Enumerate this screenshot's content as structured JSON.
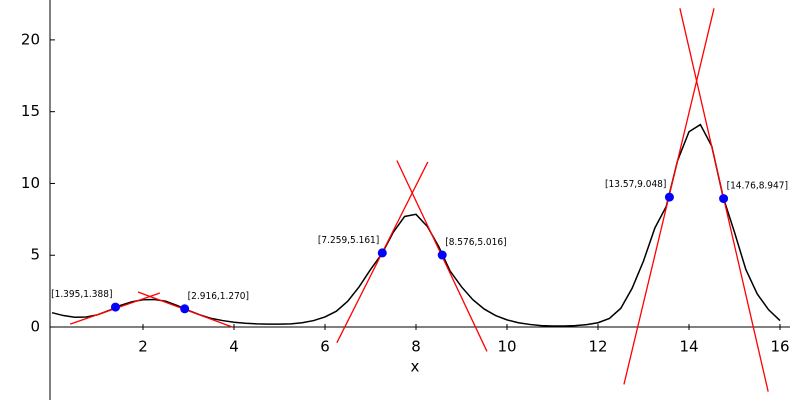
{
  "chart_data": {
    "type": "line",
    "x_label": "x",
    "xlim": [
      0,
      16
    ],
    "ylim": [
      -4.7,
      22.5
    ],
    "xticks": [
      2,
      4,
      6,
      8,
      10,
      12,
      14,
      16
    ],
    "yticks": [
      0,
      5,
      10,
      15,
      20
    ],
    "curve": {
      "color": "#000000",
      "x": [
        0,
        0.25,
        0.5,
        0.75,
        1,
        1.25,
        1.5,
        1.75,
        2,
        2.25,
        2.5,
        2.75,
        3,
        3.25,
        3.5,
        3.75,
        4,
        4.25,
        4.5,
        4.75,
        5,
        5.25,
        5.5,
        5.75,
        6,
        6.25,
        6.5,
        6.75,
        7,
        7.25,
        7.5,
        7.75,
        8,
        8.25,
        8.5,
        8.75,
        9,
        9.25,
        9.5,
        9.75,
        10,
        10.25,
        10.5,
        10.75,
        11,
        11.25,
        11.5,
        11.75,
        12,
        12.25,
        12.5,
        12.75,
        13,
        13.25,
        13.5,
        13.75,
        14,
        14.25,
        14.5,
        14.75,
        15,
        15.25,
        15.5,
        15.75,
        16
      ],
      "values": [
        1.0,
        0.8,
        0.68,
        0.7,
        0.85,
        1.15,
        1.5,
        1.75,
        1.9,
        1.92,
        1.8,
        1.5,
        1.15,
        0.85,
        0.6,
        0.45,
        0.33,
        0.26,
        0.22,
        0.2,
        0.2,
        0.22,
        0.3,
        0.45,
        0.7,
        1.1,
        1.8,
        2.8,
        4.0,
        5.1,
        6.6,
        7.7,
        7.85,
        7.0,
        5.6,
        3.9,
        2.8,
        1.9,
        1.25,
        0.8,
        0.5,
        0.3,
        0.18,
        0.1,
        0.07,
        0.07,
        0.1,
        0.17,
        0.3,
        0.6,
        1.3,
        2.7,
        4.6,
        6.9,
        8.4,
        11.6,
        13.6,
        14.1,
        12.6,
        9.05,
        6.6,
        4.0,
        2.3,
        1.2,
        0.45
      ]
    },
    "tangents": [
      {
        "color": "#ff0000",
        "x": [
          0.4,
          2.37
        ],
        "values": [
          0.2,
          2.37
        ]
      },
      {
        "color": "#ff0000",
        "x": [
          1.89,
          3.96
        ],
        "values": [
          2.44,
          0
        ]
      },
      {
        "color": "#ff0000",
        "x": [
          6.26,
          8.26
        ],
        "values": [
          -1.1,
          11.5
        ]
      },
      {
        "color": "#ff0000",
        "x": [
          7.58,
          9.56
        ],
        "values": [
          11.6,
          -1.7
        ]
      },
      {
        "color": "#ff0000",
        "x": [
          12.57,
          14.55
        ],
        "values": [
          -4.0,
          22.2
        ]
      },
      {
        "color": "#ff0000",
        "x": [
          13.8,
          15.74
        ],
        "values": [
          22.2,
          -4.5
        ]
      }
    ],
    "points": {
      "color": "#0000ff",
      "x": [
        1.395,
        2.916,
        7.259,
        8.576,
        13.57,
        14.76
      ],
      "values": [
        1.388,
        1.27,
        5.161,
        5.016,
        9.048,
        8.947
      ],
      "value_labels": [
        "[1.395,1.388]",
        "[2.916,1.270]",
        "[7.259,5.161]",
        "[8.576,5.016]",
        "[13.57,9.048]",
        "[14.76,8.947]"
      ]
    }
  }
}
